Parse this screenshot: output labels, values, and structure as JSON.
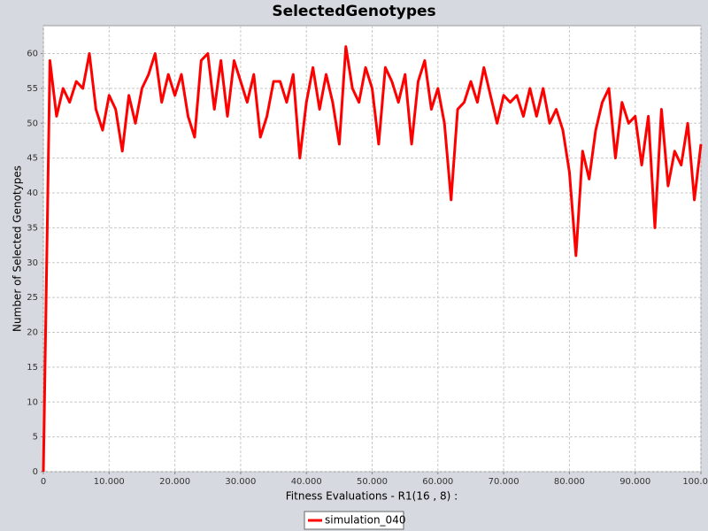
{
  "chart_data": {
    "type": "line",
    "title": "SelectedGenotypes",
    "x_label": "Fitness Evaluations - R1(16 , 8) :",
    "y_label": "Number of Selected Genotypes",
    "x": [
      0,
      1000,
      2000,
      3000,
      4000,
      5000,
      6000,
      7000,
      8000,
      9000,
      10000,
      11000,
      12000,
      13000,
      14000,
      15000,
      16000,
      17000,
      18000,
      19000,
      20000,
      21000,
      22000,
      23000,
      24000,
      25000,
      26000,
      27000,
      28000,
      29000,
      30000,
      31000,
      32000,
      33000,
      34000,
      35000,
      36000,
      37000,
      38000,
      39000,
      40000,
      41000,
      42000,
      43000,
      44000,
      45000,
      46000,
      47000,
      48000,
      49000,
      50000,
      51000,
      52000,
      53000,
      54000,
      55000,
      56000,
      57000,
      58000,
      59000,
      60000,
      61000,
      62000,
      63000,
      64000,
      65000,
      66000,
      67000,
      68000,
      69000,
      70000,
      71000,
      72000,
      73000,
      74000,
      75000,
      76000,
      77000,
      78000,
      79000,
      80000,
      81000,
      82000,
      83000,
      84000,
      85000,
      86000,
      87000,
      88000,
      89000,
      90000,
      91000,
      92000,
      93000,
      94000,
      95000,
      96000,
      97000,
      98000,
      99000,
      100000
    ],
    "series": [
      {
        "name": "simulation_040",
        "color": "#ff0000",
        "values": [
          0,
          59,
          51,
          55,
          53,
          56,
          55,
          60,
          52,
          49,
          54,
          52,
          46,
          54,
          50,
          55,
          57,
          60,
          53,
          57,
          54,
          57,
          51,
          48,
          59,
          60,
          52,
          59,
          51,
          59,
          56,
          53,
          57,
          48,
          51,
          56,
          56,
          53,
          57,
          45,
          53,
          58,
          52,
          57,
          53,
          47,
          61,
          55,
          53,
          58,
          55,
          47,
          58,
          56,
          53,
          57,
          47,
          56,
          59,
          52,
          55,
          50,
          39,
          52,
          53,
          56,
          53,
          58,
          54,
          50,
          54,
          53,
          54,
          51,
          55,
          51,
          55,
          50,
          52,
          49,
          43,
          31,
          46,
          42,
          49,
          53,
          55,
          45,
          53,
          50,
          51,
          44,
          51,
          35,
          52,
          41,
          46,
          44,
          50,
          39,
          47
        ]
      }
    ],
    "xlim": [
      0,
      100000
    ],
    "xticks": [
      0,
      {
        "value": 10000,
        "label": "10.000"
      },
      {
        "value": 20000,
        "label": "20.000"
      },
      {
        "value": 30000,
        "label": "30.000"
      },
      {
        "value": 40000,
        "label": "40.000"
      },
      {
        "value": 50000,
        "label": "50.000"
      },
      {
        "value": 60000,
        "label": "60.000"
      },
      {
        "value": 70000,
        "label": "70.000"
      },
      {
        "value": 80000,
        "label": "80.000"
      },
      {
        "value": 90000,
        "label": "90.000"
      },
      {
        "value": 100000,
        "label": "100.000"
      }
    ],
    "ylim": [
      0,
      64
    ],
    "yticks": [
      0,
      5,
      10,
      15,
      20,
      25,
      30,
      35,
      40,
      45,
      50,
      55,
      60
    ],
    "grid": true,
    "legend": "bottom"
  }
}
